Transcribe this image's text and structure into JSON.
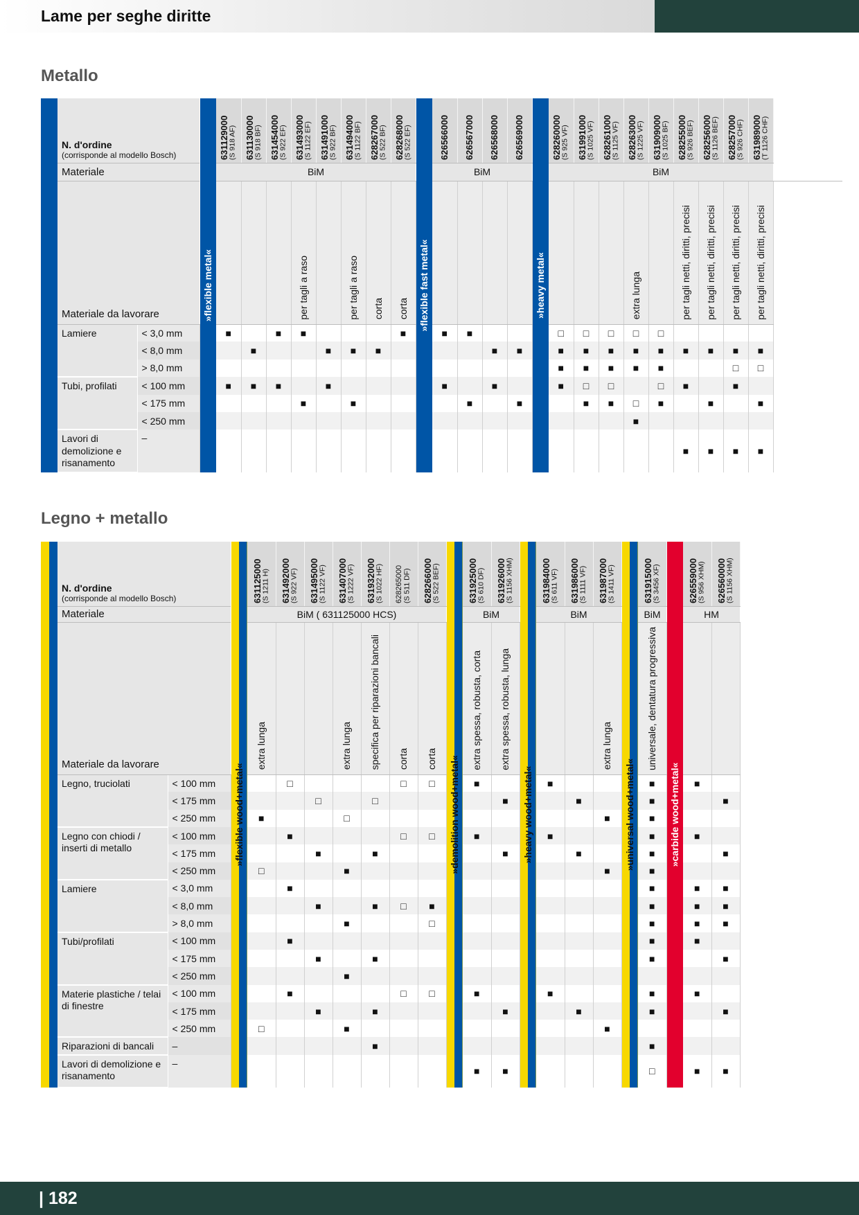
{
  "header": {
    "title": "Lame per seghe diritte"
  },
  "footer": {
    "page_number": "| 182"
  },
  "legend_symbols": {
    "filled": "■",
    "empty": "□"
  },
  "section1": {
    "title": "Metallo",
    "order_label": "N. d'ordine",
    "order_sub": "(corrisponde al modello Bosch)",
    "material_label": "Materiale",
    "workpiece_label": "Materiale da lavorare",
    "groups": [
      {
        "band": "»flexible metal«",
        "material": "BiM",
        "products": [
          {
            "code": "631129000",
            "model": "(S 918 AF)",
            "note": ""
          },
          {
            "code": "631130000",
            "model": "(S 918 BF)",
            "note": ""
          },
          {
            "code": "631454000",
            "model": "(S 922 EF)",
            "note": ""
          },
          {
            "code": "631493000",
            "model": "(S 1122 EF)",
            "note": "per tagli a raso"
          },
          {
            "code": "631491000",
            "model": "(S 922 BF)",
            "note": ""
          },
          {
            "code": "631494000",
            "model": "(S 1122 BF)",
            "note": "per tagli a raso"
          },
          {
            "code": "628267000",
            "model": "(S 522 BF)",
            "note": "corta"
          },
          {
            "code": "628268000",
            "model": "(S 522 EF)",
            "note": "corta"
          }
        ]
      },
      {
        "band": "»flexible fast metal«",
        "material": "BiM",
        "products": [
          {
            "code": "626566000",
            "model": "",
            "note": ""
          },
          {
            "code": "626567000",
            "model": "",
            "note": ""
          },
          {
            "code": "626568000",
            "model": "",
            "note": ""
          },
          {
            "code": "626569000",
            "model": "",
            "note": ""
          }
        ]
      },
      {
        "band": "»heavy metal«",
        "material": "BiM",
        "products": [
          {
            "code": "628260000",
            "model": "(S 925 VF)",
            "note": ""
          },
          {
            "code": "631991000",
            "model": "(S 1025 VF)",
            "note": ""
          },
          {
            "code": "628261000",
            "model": "(S 1125 VF)",
            "note": ""
          },
          {
            "code": "628263000",
            "model": "(S 1225 VF)",
            "note": "extra lunga"
          },
          {
            "code": "631909000",
            "model": "(S 1025 BF)",
            "note": ""
          },
          {
            "code": "628255000",
            "model": "(S 926 BEF)",
            "note": "per tagli netti, diritti, precisi"
          },
          {
            "code": "628256000",
            "model": "(S 1126 BEF)",
            "note": "per tagli netti, diritti, precisi"
          },
          {
            "code": "628257000",
            "model": "(S 926 CHF)",
            "note": "per tagli netti, diritti, precisi"
          },
          {
            "code": "631989000",
            "model": "(T 1126 CHF)",
            "note": "per tagli netti, diritti, precisi"
          }
        ]
      }
    ],
    "rows": [
      {
        "mat": "Lamiere",
        "size": "< 3,0 mm",
        "span": 3,
        "v": [
          "■",
          "",
          "■",
          "■",
          "",
          "",
          "",
          "■",
          "■",
          "■",
          "",
          "",
          "□",
          "□",
          "□",
          "□",
          "□",
          "",
          "",
          "",
          ""
        ]
      },
      {
        "size": "< 8,0 mm",
        "v": [
          "",
          "■",
          "",
          "",
          "■",
          "■",
          "■",
          "",
          "",
          "",
          "■",
          "■",
          "■",
          "■",
          "■",
          "■",
          "■",
          "■",
          "■",
          "■",
          "■"
        ]
      },
      {
        "size": "> 8,0 mm",
        "v": [
          "",
          "",
          "",
          "",
          "",
          "",
          "",
          "",
          "",
          "",
          "",
          "",
          "■",
          "■",
          "■",
          "■",
          "■",
          "",
          "",
          "□",
          "□"
        ]
      },
      {
        "mat": "Tubi, profilati",
        "size": "< 100 mm",
        "span": 3,
        "v": [
          "■",
          "■",
          "■",
          "",
          "■",
          "",
          "",
          "",
          "■",
          "",
          "■",
          "",
          "■",
          "□",
          "□",
          "",
          "□",
          "■",
          "",
          "■",
          ""
        ]
      },
      {
        "size": "< 175 mm",
        "v": [
          "",
          "",
          "",
          "■",
          "",
          "■",
          "",
          "",
          "",
          "■",
          "",
          "■",
          "",
          "■",
          "■",
          "□",
          "■",
          "",
          "■",
          "",
          "■"
        ]
      },
      {
        "size": "< 250 mm",
        "v": [
          "",
          "",
          "",
          "",
          "",
          "",
          "",
          "",
          "",
          "",
          "",
          "",
          "",
          "",
          "",
          "■",
          "",
          "",
          "",
          "",
          ""
        ]
      },
      {
        "mat": "Lavori di demolizione e risanamento",
        "size": "–",
        "span": 1,
        "tall": true,
        "v": [
          "",
          "",
          "",
          "",
          "",
          "",
          "",
          "",
          "",
          "",
          "",
          "",
          "",
          "",
          "",
          "",
          "",
          "■",
          "■",
          "■",
          "■"
        ]
      }
    ]
  },
  "section2": {
    "title": "Legno + metallo",
    "order_label": "N. d'ordine",
    "order_sub": "(corrisponde al modello Bosch)",
    "material_label": "Materiale",
    "workpiece_label": "Materiale da lavorare",
    "groups": [
      {
        "band": "»flexible wood+metal«",
        "color": "ye",
        "material": "BiM ( 631125000 HCS)",
        "products": [
          {
            "code": "631125000",
            "model": "(S 1211 H)",
            "note": "extra lunga"
          },
          {
            "code": "631492000",
            "model": "(S 922 VF)",
            "note": ""
          },
          {
            "code": "631495000",
            "model": "(S 1122 VF)",
            "note": ""
          },
          {
            "code": "631407000",
            "model": "(S 1222 VF)",
            "note": "extra lunga"
          },
          {
            "code": "631932000",
            "model": "(S 1022 HF)",
            "note": "specifica per riparazioni bancali"
          },
          {
            "code": "628265000",
            "model": "(S 511 DF)",
            "note": "corta",
            "light": true
          },
          {
            "code": "628266000",
            "model": "(S 522 BEF)",
            "note": "corta"
          }
        ]
      },
      {
        "band": "»demolition wood+metal«",
        "color": "ye",
        "material": "BiM",
        "products": [
          {
            "code": "631925000",
            "model": "(S 610 DF)",
            "note": "extra spessa, robusta, corta"
          },
          {
            "code": "631926000",
            "model": "(S 1156 XHM)",
            "note": "extra spessa, robusta, lunga"
          }
        ]
      },
      {
        "band": "»heavy wood+metal«",
        "color": "ye",
        "material": "BiM",
        "products": [
          {
            "code": "631984000",
            "model": "(S 611 VF)",
            "note": ""
          },
          {
            "code": "631986000",
            "model": "(S 1111 VF)",
            "note": ""
          },
          {
            "code": "631987000",
            "model": "(S 1411 VF)",
            "note": "extra lunga"
          }
        ]
      },
      {
        "band": "»universal wood+metal«",
        "color": "ye",
        "material": "BiM",
        "products": [
          {
            "code": "631915000",
            "model": "(S 3456 XF)",
            "note": "universale, dentatura progressiva"
          }
        ]
      },
      {
        "band": "»carbide wood+metal«",
        "color": "rd",
        "material": "HM",
        "products": [
          {
            "code": "626559000",
            "model": "(S 956 XHM)",
            "note": ""
          },
          {
            "code": "626560000",
            "model": "(S 1156 XHM)",
            "note": ""
          }
        ]
      }
    ],
    "rows": [
      {
        "mat": "Legno, truciolati",
        "size": "< 100 mm",
        "span": 3,
        "v": [
          "",
          "□",
          "",
          "",
          "",
          "□",
          "□",
          "■",
          "",
          "■",
          "",
          "",
          "■",
          "■",
          ""
        ]
      },
      {
        "size": "< 175 mm",
        "v": [
          "",
          "",
          "□",
          "",
          "□",
          "",
          "",
          "",
          "■",
          "",
          "■",
          "",
          "■",
          "",
          "■"
        ]
      },
      {
        "size": "< 250 mm",
        "v": [
          "■",
          "",
          "",
          "□",
          "",
          "",
          "",
          "",
          "",
          "",
          "",
          "■",
          "■",
          "",
          ""
        ]
      },
      {
        "mat": "Legno con chiodi / inserti di metallo",
        "size": "< 100 mm",
        "span": 3,
        "v": [
          "",
          "■",
          "",
          "",
          "",
          "□",
          "□",
          "■",
          "",
          "■",
          "",
          "",
          "■",
          "■",
          ""
        ]
      },
      {
        "size": "< 175 mm",
        "v": [
          "",
          "",
          "■",
          "",
          "■",
          "",
          "",
          "",
          "■",
          "",
          "■",
          "",
          "■",
          "",
          "■"
        ]
      },
      {
        "size": "< 250 mm",
        "v": [
          "□",
          "",
          "",
          "■",
          "",
          "",
          "",
          "",
          "",
          "",
          "",
          "■",
          "■",
          "",
          ""
        ]
      },
      {
        "mat": "Lamiere",
        "size": "< 3,0 mm",
        "span": 3,
        "v": [
          "",
          "■",
          "",
          "",
          "",
          "",
          "",
          "",
          "",
          "",
          "",
          "",
          "■",
          "■",
          "■"
        ]
      },
      {
        "size": "< 8,0 mm",
        "v": [
          "",
          "",
          "■",
          "",
          "■",
          "□",
          "■",
          "",
          "",
          "",
          "",
          "",
          "■",
          "■",
          "■"
        ]
      },
      {
        "size": "> 8,0 mm",
        "v": [
          "",
          "",
          "",
          "■",
          "",
          "",
          "□",
          "",
          "",
          "",
          "",
          "",
          "■",
          "■",
          "■"
        ]
      },
      {
        "mat": "Tubi/profilati",
        "size": "< 100 mm",
        "span": 3,
        "v": [
          "",
          "■",
          "",
          "",
          "",
          "",
          "",
          "",
          "",
          "",
          "",
          "",
          "■",
          "■",
          ""
        ]
      },
      {
        "size": "< 175 mm",
        "v": [
          "",
          "",
          "■",
          "",
          "■",
          "",
          "",
          "",
          "",
          "",
          "",
          "",
          "■",
          "",
          "■"
        ]
      },
      {
        "size": "< 250 mm",
        "v": [
          "",
          "",
          "",
          "■",
          "",
          "",
          "",
          "",
          "",
          "",
          "",
          "",
          "",
          "",
          ""
        ]
      },
      {
        "mat": "Materie plastiche / telai di finestre",
        "size": "< 100 mm",
        "span": 3,
        "v": [
          "",
          "■",
          "",
          "",
          "",
          "□",
          "□",
          "■",
          "",
          "■",
          "",
          "",
          "■",
          "■",
          ""
        ]
      },
      {
        "size": "< 175 mm",
        "v": [
          "",
          "",
          "■",
          "",
          "■",
          "",
          "",
          "",
          "■",
          "",
          "■",
          "",
          "■",
          "",
          "■"
        ]
      },
      {
        "size": "< 250 mm",
        "v": [
          "□",
          "",
          "",
          "■",
          "",
          "",
          "",
          "",
          "",
          "",
          "",
          "■",
          "",
          "",
          ""
        ]
      },
      {
        "mat": "Riparazioni di bancali",
        "size": "–",
        "span": 1,
        "v": [
          "",
          "",
          "",
          "",
          "■",
          "",
          "",
          "",
          "",
          "",
          "",
          "",
          "■",
          "",
          ""
        ]
      },
      {
        "mat": "Lavori di demolizione e risanamento",
        "size": "–",
        "span": 1,
        "tall": true,
        "v": [
          "",
          "",
          "",
          "",
          "",
          "",
          "",
          "■",
          "■",
          "",
          "",
          "",
          "□",
          "■",
          "■"
        ]
      }
    ]
  }
}
